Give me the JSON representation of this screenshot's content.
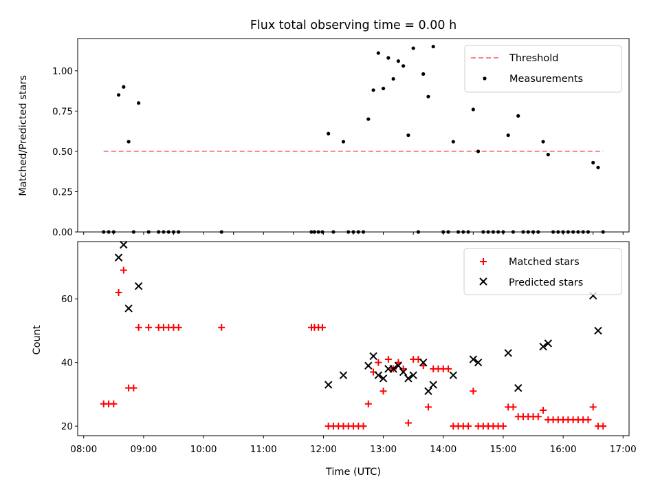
{
  "chart_data": [
    {
      "type": "scatter",
      "title": "Flux total observing time = 0.00 h",
      "xlabel": "",
      "ylabel": "Matched/Predicted stars",
      "xlim_hours": [
        7.9,
        17.1
      ],
      "ylim": [
        0,
        1.2
      ],
      "yticks": [
        "0.00",
        "0.25",
        "0.50",
        "0.75",
        "1.00"
      ],
      "yticks_values": [
        0,
        0.25,
        0.5,
        0.75,
        1.0
      ],
      "legend_position": "top-right",
      "threshold": {
        "name": "Threshold",
        "value": 0.5,
        "x_range": [
          "08:20",
          "16:40"
        ],
        "color": "#ff8080",
        "style": "dashed"
      },
      "series": [
        {
          "name": "Measurements",
          "color": "#000000",
          "marker": "dot",
          "points": [
            [
              "08:20",
              0
            ],
            [
              "08:25",
              0
            ],
            [
              "08:30",
              0
            ],
            [
              "08:35",
              0.85
            ],
            [
              "08:40",
              0.9
            ],
            [
              "08:45",
              0.56
            ],
            [
              "08:50",
              0
            ],
            [
              "08:55",
              0.8
            ],
            [
              "09:05",
              0
            ],
            [
              "09:15",
              0
            ],
            [
              "09:20",
              0
            ],
            [
              "09:25",
              0
            ],
            [
              "09:30",
              0
            ],
            [
              "09:35",
              0
            ],
            [
              "10:18",
              0
            ],
            [
              "11:48",
              0
            ],
            [
              "11:51",
              0
            ],
            [
              "11:55",
              0
            ],
            [
              "11:59",
              0
            ],
            [
              "12:05",
              0.61
            ],
            [
              "12:10",
              0
            ],
            [
              "12:20",
              0.56
            ],
            [
              "12:25",
              0
            ],
            [
              "12:30",
              0
            ],
            [
              "12:35",
              0
            ],
            [
              "12:40",
              0
            ],
            [
              "12:45",
              0.7
            ],
            [
              "12:50",
              0.88
            ],
            [
              "12:55",
              1.11
            ],
            [
              "13:00",
              0.89
            ],
            [
              "13:05",
              1.08
            ],
            [
              "13:10",
              0.95
            ],
            [
              "13:15",
              1.06
            ],
            [
              "13:20",
              1.03
            ],
            [
              "13:25",
              0.6
            ],
            [
              "13:30",
              1.14
            ],
            [
              "13:35",
              0
            ],
            [
              "13:40",
              0.98
            ],
            [
              "13:45",
              0.84
            ],
            [
              "13:50",
              1.15
            ],
            [
              "14:00",
              0
            ],
            [
              "14:05",
              0
            ],
            [
              "14:10",
              0.56
            ],
            [
              "14:15",
              0
            ],
            [
              "14:20",
              0
            ],
            [
              "14:25",
              0
            ],
            [
              "14:30",
              0.76
            ],
            [
              "14:35",
              0.5
            ],
            [
              "14:40",
              0
            ],
            [
              "14:45",
              0
            ],
            [
              "14:50",
              0
            ],
            [
              "14:55",
              0
            ],
            [
              "15:00",
              0
            ],
            [
              "15:05",
              0.6
            ],
            [
              "15:10",
              0
            ],
            [
              "15:15",
              0.72
            ],
            [
              "15:20",
              0
            ],
            [
              "15:25",
              0
            ],
            [
              "15:30",
              0
            ],
            [
              "15:35",
              0
            ],
            [
              "15:40",
              0.56
            ],
            [
              "15:45",
              0.48
            ],
            [
              "15:50",
              0
            ],
            [
              "15:55",
              0
            ],
            [
              "16:00",
              0
            ],
            [
              "16:05",
              0
            ],
            [
              "16:10",
              0
            ],
            [
              "16:15",
              0
            ],
            [
              "16:20",
              0
            ],
            [
              "16:25",
              0
            ],
            [
              "16:30",
              0.43
            ],
            [
              "16:35",
              0.4
            ],
            [
              "16:40",
              0
            ]
          ]
        }
      ]
    },
    {
      "type": "scatter",
      "title": "",
      "xlabel": "Time (UTC)",
      "ylabel": "Count",
      "xlim_hours": [
        7.9,
        17.1
      ],
      "ylim": [
        17,
        78
      ],
      "yticks": [
        "20",
        "40",
        "60"
      ],
      "yticks_values": [
        20,
        40,
        60
      ],
      "xticks": [
        "08:00",
        "09:00",
        "10:00",
        "11:00",
        "12:00",
        "13:00",
        "14:00",
        "15:00",
        "16:00",
        "17:00"
      ],
      "xticks_values": [
        8,
        9,
        10,
        11,
        12,
        13,
        14,
        15,
        16,
        17
      ],
      "legend_position": "top-right",
      "series": [
        {
          "name": "Matched stars",
          "color": "#ff0000",
          "marker": "plus",
          "points": [
            [
              "08:20",
              27
            ],
            [
              "08:25",
              27
            ],
            [
              "08:30",
              27
            ],
            [
              "08:35",
              62
            ],
            [
              "08:40",
              69
            ],
            [
              "08:45",
              32
            ],
            [
              "08:50",
              32
            ],
            [
              "08:55",
              51
            ],
            [
              "09:05",
              51
            ],
            [
              "09:15",
              51
            ],
            [
              "09:20",
              51
            ],
            [
              "09:25",
              51
            ],
            [
              "09:30",
              51
            ],
            [
              "09:35",
              51
            ],
            [
              "10:18",
              51
            ],
            [
              "11:48",
              51
            ],
            [
              "11:51",
              51
            ],
            [
              "11:55",
              51
            ],
            [
              "11:59",
              51
            ],
            [
              "12:05",
              20
            ],
            [
              "12:10",
              20
            ],
            [
              "12:15",
              20
            ],
            [
              "12:20",
              20
            ],
            [
              "12:25",
              20
            ],
            [
              "12:30",
              20
            ],
            [
              "12:35",
              20
            ],
            [
              "12:40",
              20
            ],
            [
              "12:45",
              27
            ],
            [
              "12:50",
              37
            ],
            [
              "12:55",
              40
            ],
            [
              "13:00",
              31
            ],
            [
              "13:05",
              41
            ],
            [
              "13:10",
              38
            ],
            [
              "13:15",
              40
            ],
            [
              "13:20",
              38
            ],
            [
              "13:25",
              21
            ],
            [
              "13:30",
              41
            ],
            [
              "13:35",
              41
            ],
            [
              "13:40",
              39
            ],
            [
              "13:45",
              26
            ],
            [
              "13:50",
              38
            ],
            [
              "13:55",
              38
            ],
            [
              "14:00",
              38
            ],
            [
              "14:05",
              38
            ],
            [
              "14:10",
              20
            ],
            [
              "14:15",
              20
            ],
            [
              "14:20",
              20
            ],
            [
              "14:25",
              20
            ],
            [
              "14:30",
              31
            ],
            [
              "14:35",
              20
            ],
            [
              "14:40",
              20
            ],
            [
              "14:45",
              20
            ],
            [
              "14:50",
              20
            ],
            [
              "14:55",
              20
            ],
            [
              "15:00",
              20
            ],
            [
              "15:05",
              26
            ],
            [
              "15:10",
              26
            ],
            [
              "15:15",
              23
            ],
            [
              "15:20",
              23
            ],
            [
              "15:25",
              23
            ],
            [
              "15:30",
              23
            ],
            [
              "15:35",
              23
            ],
            [
              "15:40",
              25
            ],
            [
              "15:45",
              22
            ],
            [
              "15:50",
              22
            ],
            [
              "15:55",
              22
            ],
            [
              "16:00",
              22
            ],
            [
              "16:05",
              22
            ],
            [
              "16:10",
              22
            ],
            [
              "16:15",
              22
            ],
            [
              "16:20",
              22
            ],
            [
              "16:25",
              22
            ],
            [
              "16:30",
              26
            ],
            [
              "16:35",
              20
            ],
            [
              "16:40",
              20
            ]
          ]
        },
        {
          "name": "Predicted stars",
          "color": "#000000",
          "marker": "x",
          "points": [
            [
              "08:35",
              73
            ],
            [
              "08:40",
              77
            ],
            [
              "08:45",
              57
            ],
            [
              "08:55",
              64
            ],
            [
              "12:05",
              33
            ],
            [
              "12:20",
              36
            ],
            [
              "12:45",
              39
            ],
            [
              "12:50",
              42
            ],
            [
              "12:55",
              36
            ],
            [
              "13:00",
              35
            ],
            [
              "13:05",
              38
            ],
            [
              "13:10",
              38
            ],
            [
              "13:15",
              39
            ],
            [
              "13:20",
              37
            ],
            [
              "13:25",
              35
            ],
            [
              "13:30",
              36
            ],
            [
              "13:40",
              40
            ],
            [
              "13:45",
              31
            ],
            [
              "13:50",
              33
            ],
            [
              "14:10",
              36
            ],
            [
              "14:30",
              41
            ],
            [
              "14:35",
              40
            ],
            [
              "15:05",
              43
            ],
            [
              "15:15",
              32
            ],
            [
              "15:40",
              45
            ],
            [
              "15:45",
              46
            ],
            [
              "16:30",
              61
            ],
            [
              "16:35",
              50
            ]
          ]
        }
      ]
    }
  ]
}
